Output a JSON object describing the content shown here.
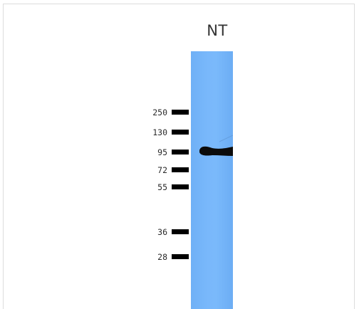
{
  "blot": {
    "lane_label": "NT",
    "lane_color": "#79b8fb",
    "band_color": "#0b0b0b",
    "band_marker": "95",
    "markers": [
      "250",
      "130",
      "95",
      "72",
      "55",
      "36",
      "28"
    ]
  }
}
